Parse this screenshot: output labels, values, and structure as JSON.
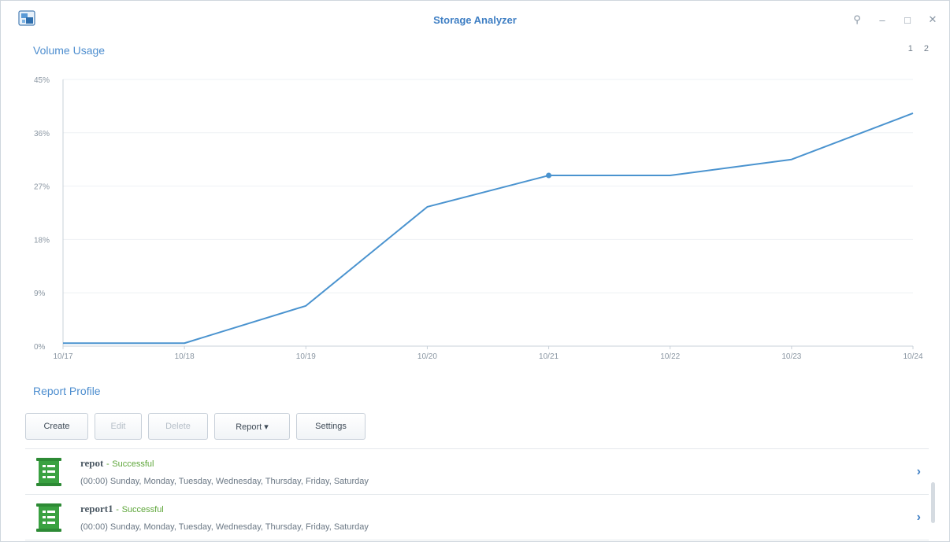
{
  "window": {
    "title": "Storage Analyzer",
    "controls": {
      "pin": "⚲",
      "minimize": "–",
      "maximize": "□",
      "close": "✕"
    }
  },
  "volume_usage": {
    "title": "Volume Usage",
    "pages": [
      "1",
      "2"
    ]
  },
  "chart_data": {
    "type": "line",
    "x": [
      "10/17",
      "10/18",
      "10/19",
      "10/20",
      "10/21",
      "10/22",
      "10/23",
      "10/24"
    ],
    "series": [
      {
        "values": [
          0.5,
          0.5,
          6.8,
          23.5,
          28.8,
          28.8,
          31.5,
          39.3
        ]
      }
    ],
    "ylim": [
      0,
      45
    ],
    "yticks": [
      "0%",
      "9%",
      "18%",
      "27%",
      "36%",
      "45%"
    ],
    "highlight_index": 4,
    "line_color": "#4a93cf",
    "grid": true
  },
  "report_profile": {
    "title": "Report Profile",
    "toolbar": {
      "create": "Create",
      "edit": "Edit",
      "delete": "Delete",
      "report": "Report ▾",
      "settings": "Settings"
    },
    "items": [
      {
        "name": "repot",
        "separator": "-",
        "status": "Successful",
        "schedule": "(00:00) Sunday, Monday, Tuesday, Wednesday, Thursday, Friday, Saturday"
      },
      {
        "name": "report1",
        "separator": "-",
        "status": "Successful",
        "schedule": "(00:00) Sunday, Monday, Tuesday, Wednesday, Thursday, Friday, Saturday"
      }
    ],
    "chevron": "›"
  },
  "colors": {
    "accent": "#3f7fc4",
    "success": "#5ea63a",
    "icon_green": "#3aa141"
  }
}
